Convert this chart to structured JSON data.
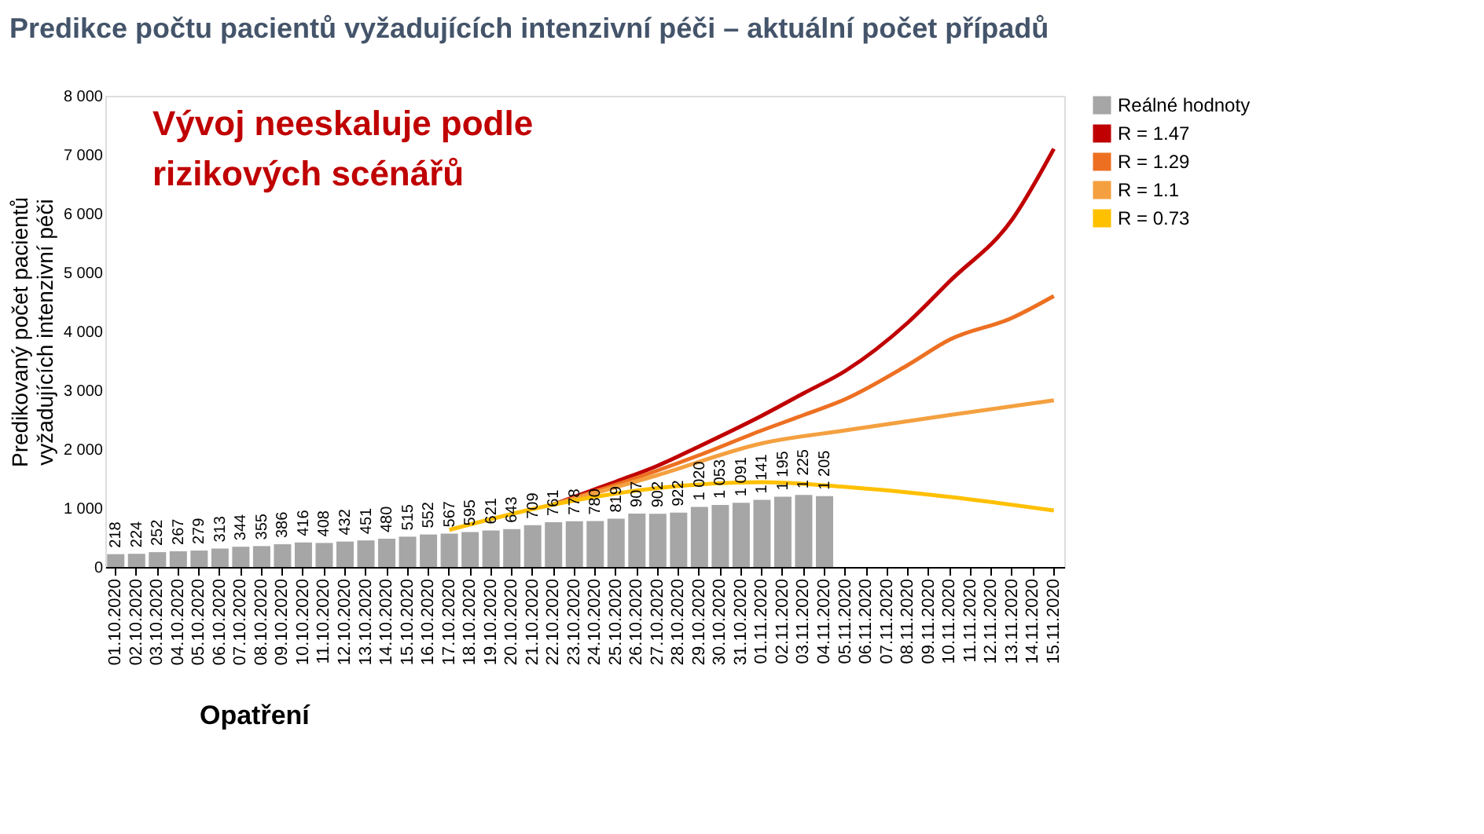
{
  "chart_data": {
    "type": "bar",
    "title": "Predikce počtu pacientů vyžadujících intenzivní péči – aktuální počet případů",
    "ylabel": "Predikovaný počet pacientů\nvyžadujících intenzivní péči",
    "categories": [
      "01.10.2020",
      "02.10.2020",
      "03.10.2020",
      "04.10.2020",
      "05.10.2020",
      "06.10.2020",
      "07.10.2020",
      "08.10.2020",
      "09.10.2020",
      "10.10.2020",
      "11.10.2020",
      "12.10.2020",
      "13.10.2020",
      "14.10.2020",
      "15.10.2020",
      "16.10.2020",
      "17.10.2020",
      "18.10.2020",
      "19.10.2020",
      "20.10.2020",
      "21.10.2020",
      "22.10.2020",
      "23.10.2020",
      "24.10.2020",
      "25.10.2020",
      "26.10.2020",
      "27.10.2020",
      "28.10.2020",
      "29.10.2020",
      "30.10.2020",
      "31.10.2020",
      "01.11.2020",
      "02.11.2020",
      "03.11.2020",
      "04.11.2020",
      "05.11.2020",
      "06.11.2020",
      "07.11.2020",
      "08.11.2020",
      "09.11.2020",
      "10.11.2020",
      "11.11.2020",
      "12.11.2020",
      "13.11.2020",
      "14.11.2020",
      "15.11.2020"
    ],
    "series": [
      {
        "name": "Reálné hodnoty",
        "color": "#a6a6a6",
        "values": [
          218,
          224,
          252,
          267,
          279,
          313,
          344,
          355,
          386,
          416,
          408,
          432,
          451,
          480,
          515,
          552,
          567,
          595,
          621,
          643,
          709,
          761,
          778,
          780,
          819,
          907,
          902,
          922,
          1020,
          1053,
          1091,
          1141,
          1195,
          1225,
          1205,
          null,
          null,
          null,
          null,
          null,
          null,
          null,
          null,
          null,
          null,
          null
        ],
        "value_labels": [
          "218",
          "224",
          "252",
          "267",
          "279",
          "313",
          "344",
          "355",
          "386",
          "416",
          "408",
          "432",
          "451",
          "480",
          "515",
          "552",
          "567",
          "595",
          "621",
          "643",
          "709",
          "761",
          "778",
          "780",
          "819",
          "907",
          "902",
          "922",
          "1 020",
          "1 053",
          "1 091",
          "1 141",
          "1 195",
          "1 225",
          "1 205",
          null,
          null,
          null,
          null,
          null,
          null,
          null,
          null,
          null,
          null,
          null
        ]
      },
      {
        "name": "R = 1.47",
        "type": "line",
        "color": "#c00000",
        "x": [
          "22.10.2020",
          "25.10.2020",
          "27.10.2020",
          "29.10.2020",
          "01.11.2020",
          "03.11.2020",
          "05.11.2020",
          "08.11.2020",
          "10.11.2020",
          "13.11.2020",
          "15.11.2020"
        ],
        "values": [
          1060,
          1450,
          1720,
          2050,
          2570,
          2950,
          3330,
          4150,
          4850,
          5900,
          7100
        ]
      },
      {
        "name": "R = 1.29",
        "type": "line",
        "color": "#ed7022",
        "x": [
          "22.10.2020",
          "27.10.2020",
          "29.10.2020",
          "01.11.2020",
          "03.11.2020",
          "05.11.2020",
          "08.11.2020",
          "10.11.2020",
          "13.11.2020",
          "15.11.2020"
        ],
        "values": [
          1060,
          1640,
          1900,
          2320,
          2580,
          2850,
          3430,
          3860,
          4230,
          4600
        ]
      },
      {
        "name": "R = 1.1",
        "type": "line",
        "color": "#f4a040",
        "x": [
          "22.10.2020",
          "27.10.2020",
          "01.11.2020",
          "05.11.2020",
          "10.11.2020",
          "15.11.2020"
        ],
        "values": [
          1060,
          1560,
          2100,
          2320,
          2580,
          2830
        ]
      },
      {
        "name": "R = 0.73",
        "type": "line",
        "color": "#ffc000",
        "x": [
          "17.10.2020",
          "22.10.2020",
          "27.10.2020",
          "01.11.2020",
          "05.11.2020",
          "10.11.2020",
          "15.11.2020"
        ],
        "values": [
          630,
          1060,
          1340,
          1440,
          1360,
          1190,
          960
        ]
      }
    ],
    "ylim": [
      0,
      8000
    ],
    "yticks": [
      0,
      {
        "value": 1000,
        "label": "1 000"
      },
      {
        "value": 2000,
        "label": "2 000"
      },
      {
        "value": 3000,
        "label": "3 000"
      },
      {
        "value": 4000,
        "label": "4 000"
      },
      {
        "value": 5000,
        "label": "5 000"
      },
      {
        "value": 6000,
        "label": "6 000"
      },
      {
        "value": 7000,
        "label": "7 000"
      },
      {
        "value": 8000,
        "label": "8 000"
      }
    ],
    "legend": "right",
    "annotations": [
      "Vývoj neeskaluje podle\nrizikových scénářů",
      "Opatření"
    ]
  }
}
